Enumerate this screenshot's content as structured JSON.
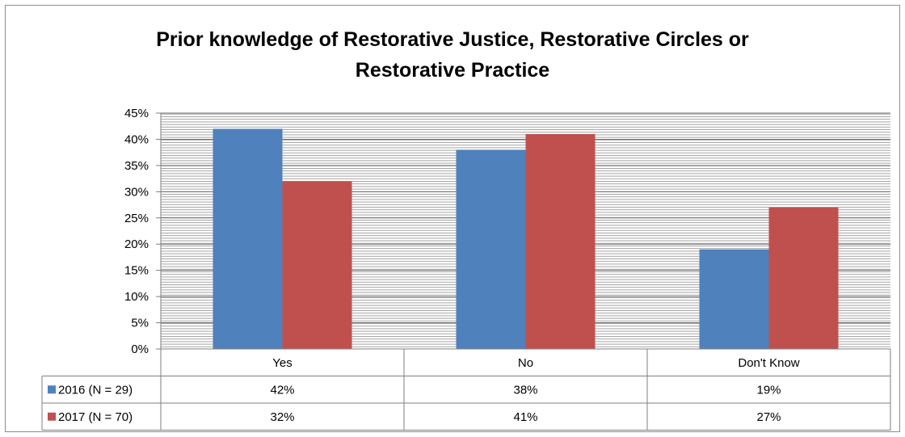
{
  "chart_data": {
    "type": "bar",
    "title_lines": [
      "Prior knowledge of Restorative Justice, Restorative Circles or",
      "Restorative Practice"
    ],
    "categories": [
      "Yes",
      "No",
      "Don't Know"
    ],
    "series": [
      {
        "name": "2016 (N = 29)",
        "values": [
          42,
          38,
          19
        ],
        "labels": [
          "42%",
          "38%",
          "19%"
        ],
        "color": "#4f81bd"
      },
      {
        "name": "2017 (N = 70)",
        "values": [
          32,
          41,
          27
        ],
        "labels": [
          "32%",
          "41%",
          "27%"
        ],
        "color": "#c0504d"
      }
    ],
    "ylim": [
      0,
      45
    ],
    "yticks": [
      0,
      5,
      10,
      15,
      20,
      25,
      30,
      35,
      40,
      45
    ],
    "ytick_labels": [
      "0%",
      "5%",
      "10%",
      "15%",
      "20%",
      "25%",
      "30%",
      "35%",
      "40%",
      "45%"
    ],
    "grid": true,
    "data_table": true
  }
}
